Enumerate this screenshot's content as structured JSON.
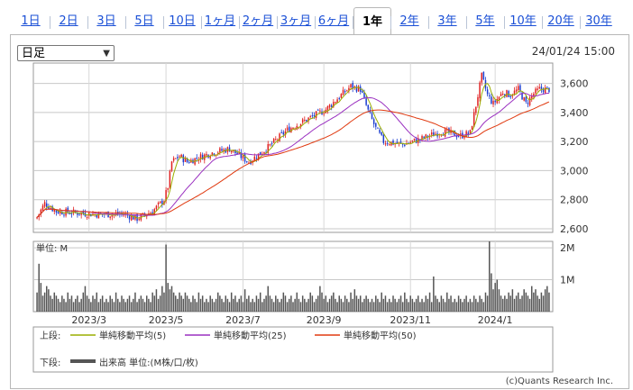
{
  "tabs": [
    "1日",
    "2日",
    "3日",
    "5日",
    "10日",
    "1ヶ月",
    "2ヶ月",
    "3ヶ月",
    "6ヶ月",
    "1年",
    "2年",
    "3年",
    "5年",
    "10年",
    "20年",
    "30年"
  ],
  "active_tab": "1年",
  "period_select": "日足",
  "datetime": "24/01/24 15:00",
  "unit_label": "単位: M",
  "legend": {
    "upper_label": "上段:",
    "lower_label": "下段:",
    "ma5": "単純移動平均(5)",
    "ma25": "単純移動平均(25)",
    "ma50": "単純移動平均(50)",
    "volume": "出来高 単位:(M株/口/枚)"
  },
  "copyright": "(c)Quants Research Inc.",
  "colors": {
    "up": "#e02020",
    "down": "#1a3cd0",
    "ma5": "#9aae00",
    "ma25": "#9a30c0",
    "ma50": "#e03a10",
    "volume": "#555555"
  },
  "chart_data": {
    "type": "candlestick",
    "price_axis": {
      "ticks": [
        2600,
        2800,
        3000,
        3200,
        3400,
        3600
      ],
      "labels": [
        "2,600",
        "2,800",
        "3,000",
        "3,200",
        "3,400",
        "3,600"
      ],
      "ylim": [
        2575,
        3740
      ]
    },
    "volume_axis": {
      "ticks": [
        1,
        2
      ],
      "labels": [
        "1M",
        "2M"
      ],
      "ylim": [
        0,
        2.2
      ]
    },
    "x_labels": [
      "2023/3",
      "2023/5",
      "2023/7",
      "2023/9",
      "2023/11",
      "2024/1"
    ],
    "close_anchors": [
      [
        0,
        2680
      ],
      [
        4,
        2775
      ],
      [
        10,
        2720
      ],
      [
        30,
        2700
      ],
      [
        45,
        2700
      ],
      [
        52,
        2670
      ],
      [
        60,
        2720
      ],
      [
        66,
        2800
      ],
      [
        68,
        2890
      ],
      [
        70,
        3060
      ],
      [
        74,
        3100
      ],
      [
        78,
        3060
      ],
      [
        90,
        3120
      ],
      [
        100,
        3150
      ],
      [
        110,
        3060
      ],
      [
        120,
        3160
      ],
      [
        130,
        3280
      ],
      [
        140,
        3350
      ],
      [
        150,
        3420
      ],
      [
        158,
        3520
      ],
      [
        163,
        3580
      ],
      [
        168,
        3560
      ],
      [
        172,
        3410
      ],
      [
        176,
        3290
      ],
      [
        180,
        3200
      ],
      [
        190,
        3180
      ],
      [
        200,
        3220
      ],
      [
        210,
        3270
      ],
      [
        220,
        3240
      ],
      [
        225,
        3260
      ],
      [
        228,
        3450
      ],
      [
        231,
        3650
      ],
      [
        234,
        3520
      ],
      [
        237,
        3460
      ],
      [
        242,
        3540
      ],
      [
        246,
        3520
      ],
      [
        250,
        3560
      ],
      [
        254,
        3460
      ],
      [
        258,
        3530
      ],
      [
        261,
        3560
      ]
    ],
    "volume": [
      0.6,
      1.5,
      0.9,
      0.5,
      0.6,
      0.8,
      0.7,
      0.5,
      0.4,
      0.6,
      0.5,
      0.4,
      0.3,
      0.5,
      0.4,
      0.3,
      0.6,
      0.4,
      0.5,
      0.3,
      0.4,
      0.5,
      0.3,
      0.4,
      0.6,
      0.8,
      0.5,
      0.4,
      0.3,
      0.5,
      0.4,
      0.6,
      0.3,
      0.4,
      0.5,
      0.3,
      0.4,
      0.3,
      0.5,
      0.4,
      0.3,
      0.6,
      0.4,
      0.3,
      0.5,
      0.4,
      0.3,
      0.4,
      0.5,
      0.3,
      0.4,
      0.6,
      0.3,
      0.4,
      0.5,
      0.4,
      0.3,
      0.5,
      0.4,
      0.3,
      0.6,
      0.5,
      0.7,
      0.4,
      0.5,
      0.8,
      0.6,
      2.1,
      0.9,
      0.7,
      0.8,
      0.6,
      0.5,
      0.4,
      0.6,
      0.5,
      0.4,
      0.6,
      0.5,
      0.4,
      0.3,
      0.5,
      0.4,
      0.3,
      0.6,
      0.4,
      0.5,
      0.3,
      0.4,
      0.3,
      0.5,
      0.4,
      0.3,
      0.4,
      0.6,
      0.5,
      0.4,
      0.3,
      0.5,
      0.4,
      0.3,
      0.6,
      0.4,
      0.5,
      0.3,
      0.4,
      0.5,
      0.3,
      0.7,
      0.4,
      0.5,
      0.3,
      0.4,
      0.3,
      0.5,
      0.4,
      0.6,
      0.3,
      0.4,
      0.5,
      0.8,
      0.5,
      0.4,
      0.3,
      0.5,
      0.4,
      0.3,
      0.4,
      0.6,
      0.5,
      0.3,
      0.4,
      0.5,
      0.3,
      0.4,
      0.6,
      0.4,
      0.3,
      0.5,
      0.4,
      0.3,
      0.4,
      0.6,
      0.5,
      0.3,
      0.4,
      0.5,
      0.8,
      0.6,
      0.4,
      0.5,
      0.3,
      0.4,
      0.5,
      0.6,
      0.4,
      0.3,
      0.5,
      0.4,
      0.3,
      0.5,
      0.4,
      0.3,
      0.6,
      0.4,
      0.7,
      0.5,
      0.4,
      0.5,
      0.3,
      0.4,
      0.5,
      0.4,
      0.3,
      0.4,
      0.3,
      0.5,
      0.4,
      0.3,
      0.6,
      0.4,
      0.5,
      0.3,
      0.4,
      0.3,
      0.5,
      0.4,
      0.3,
      0.4,
      0.5,
      0.3,
      0.6,
      0.4,
      0.3,
      0.5,
      0.4,
      0.3,
      0.4,
      0.5,
      0.3,
      0.4,
      0.3,
      0.5,
      0.4,
      0.6,
      0.3,
      1.1,
      0.5,
      0.4,
      0.3,
      0.5,
      0.4,
      0.3,
      0.6,
      0.4,
      0.5,
      0.3,
      0.4,
      0.3,
      0.5,
      0.4,
      0.3,
      0.4,
      0.5,
      0.3,
      0.4,
      0.3,
      0.5,
      0.4,
      0.3,
      0.5,
      0.4,
      0.3,
      0.6,
      0.5,
      2.2,
      1.2,
      0.7,
      0.9,
      1.0,
      0.7,
      0.5,
      0.4,
      0.5,
      0.4,
      0.6,
      0.5,
      0.7,
      0.4,
      0.5,
      0.6,
      0.4,
      0.5,
      0.7,
      0.6,
      0.5,
      0.4,
      0.8,
      0.6,
      0.7,
      0.5,
      0.4,
      0.6,
      0.5,
      0.7,
      0.8,
      0.6
    ]
  }
}
